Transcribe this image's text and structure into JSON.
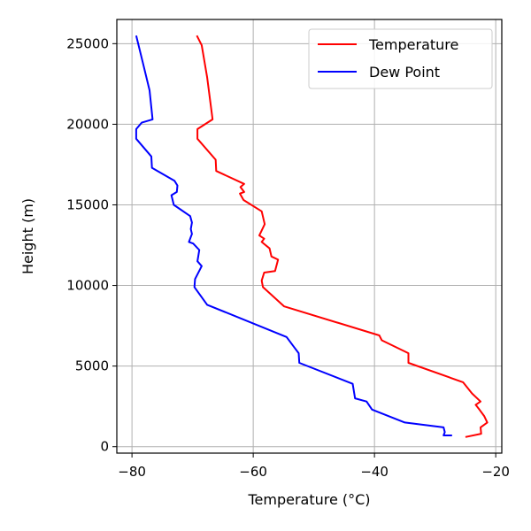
{
  "chart_data": {
    "type": "line",
    "title": "",
    "xlabel": "Temperature (°C)",
    "ylabel": "Height (m)",
    "xlim": [
      -82.5,
      -19
    ],
    "ylim": [
      -400,
      26500
    ],
    "grid": true,
    "legend": "top-right",
    "x_ticks": [
      -80,
      -60,
      -40,
      -20
    ],
    "x_tick_labels": [
      "−80",
      "−60",
      "−40",
      "−20"
    ],
    "y_ticks": [
      0,
      5000,
      10000,
      15000,
      20000,
      25000
    ],
    "y_tick_labels": [
      "0",
      "5000",
      "10000",
      "15000",
      "20000",
      "25000"
    ],
    "series": [
      {
        "name": "Temperature",
        "color": "#ff0000",
        "points": [
          [
            -25.0,
            600
          ],
          [
            -22.4,
            800
          ],
          [
            -22.5,
            1200
          ],
          [
            -21.4,
            1500
          ],
          [
            -21.9,
            1900
          ],
          [
            -22.7,
            2300
          ],
          [
            -23.3,
            2600
          ],
          [
            -22.5,
            2800
          ],
          [
            -23.9,
            3300
          ],
          [
            -25.4,
            4000
          ],
          [
            -34.4,
            5200
          ],
          [
            -34.4,
            5800
          ],
          [
            -38.8,
            6600
          ],
          [
            -39.2,
            6900
          ],
          [
            -54.9,
            8700
          ],
          [
            -58.4,
            9900
          ],
          [
            -58.6,
            10300
          ],
          [
            -58.2,
            10800
          ],
          [
            -56.4,
            10900
          ],
          [
            -55.9,
            11600
          ],
          [
            -57.0,
            11800
          ],
          [
            -57.3,
            12300
          ],
          [
            -58.6,
            12700
          ],
          [
            -58.2,
            12900
          ],
          [
            -59.0,
            13100
          ],
          [
            -58.1,
            13800
          ],
          [
            -58.6,
            14600
          ],
          [
            -61.6,
            15300
          ],
          [
            -62.2,
            15700
          ],
          [
            -61.5,
            15800
          ],
          [
            -62.1,
            16100
          ],
          [
            -61.5,
            16300
          ],
          [
            -66.1,
            17100
          ],
          [
            -66.2,
            17800
          ],
          [
            -69.2,
            19100
          ],
          [
            -69.2,
            19700
          ],
          [
            -66.7,
            20300
          ],
          [
            -67.6,
            22900
          ],
          [
            -68.5,
            24900
          ],
          [
            -69.3,
            25500
          ]
        ]
      },
      {
        "name": "Dew Point",
        "color": "#0000ff",
        "points": [
          [
            -27.2,
            700
          ],
          [
            -28.6,
            700
          ],
          [
            -28.4,
            900
          ],
          [
            -28.6,
            1200
          ],
          [
            -35.0,
            1500
          ],
          [
            -40.4,
            2300
          ],
          [
            -41.3,
            2800
          ],
          [
            -43.2,
            3000
          ],
          [
            -43.6,
            3900
          ],
          [
            -52.4,
            5200
          ],
          [
            -52.5,
            5800
          ],
          [
            -53.3,
            6200
          ],
          [
            -54.5,
            6800
          ],
          [
            -67.6,
            8800
          ],
          [
            -69.7,
            9900
          ],
          [
            -69.6,
            10400
          ],
          [
            -68.5,
            11200
          ],
          [
            -69.2,
            11500
          ],
          [
            -68.9,
            12200
          ],
          [
            -69.9,
            12600
          ],
          [
            -70.6,
            12700
          ],
          [
            -70.1,
            13200
          ],
          [
            -70.3,
            13500
          ],
          [
            -70.1,
            13900
          ],
          [
            -70.4,
            14300
          ],
          [
            -73.1,
            15000
          ],
          [
            -73.5,
            15600
          ],
          [
            -72.6,
            15800
          ],
          [
            -72.5,
            16200
          ],
          [
            -73.0,
            16500
          ],
          [
            -76.7,
            17300
          ],
          [
            -76.8,
            18000
          ],
          [
            -79.3,
            19100
          ],
          [
            -79.3,
            19700
          ],
          [
            -78.4,
            20100
          ],
          [
            -76.6,
            20300
          ],
          [
            -77.1,
            22100
          ],
          [
            -78.2,
            23800
          ],
          [
            -79.3,
            25500
          ]
        ]
      }
    ]
  }
}
